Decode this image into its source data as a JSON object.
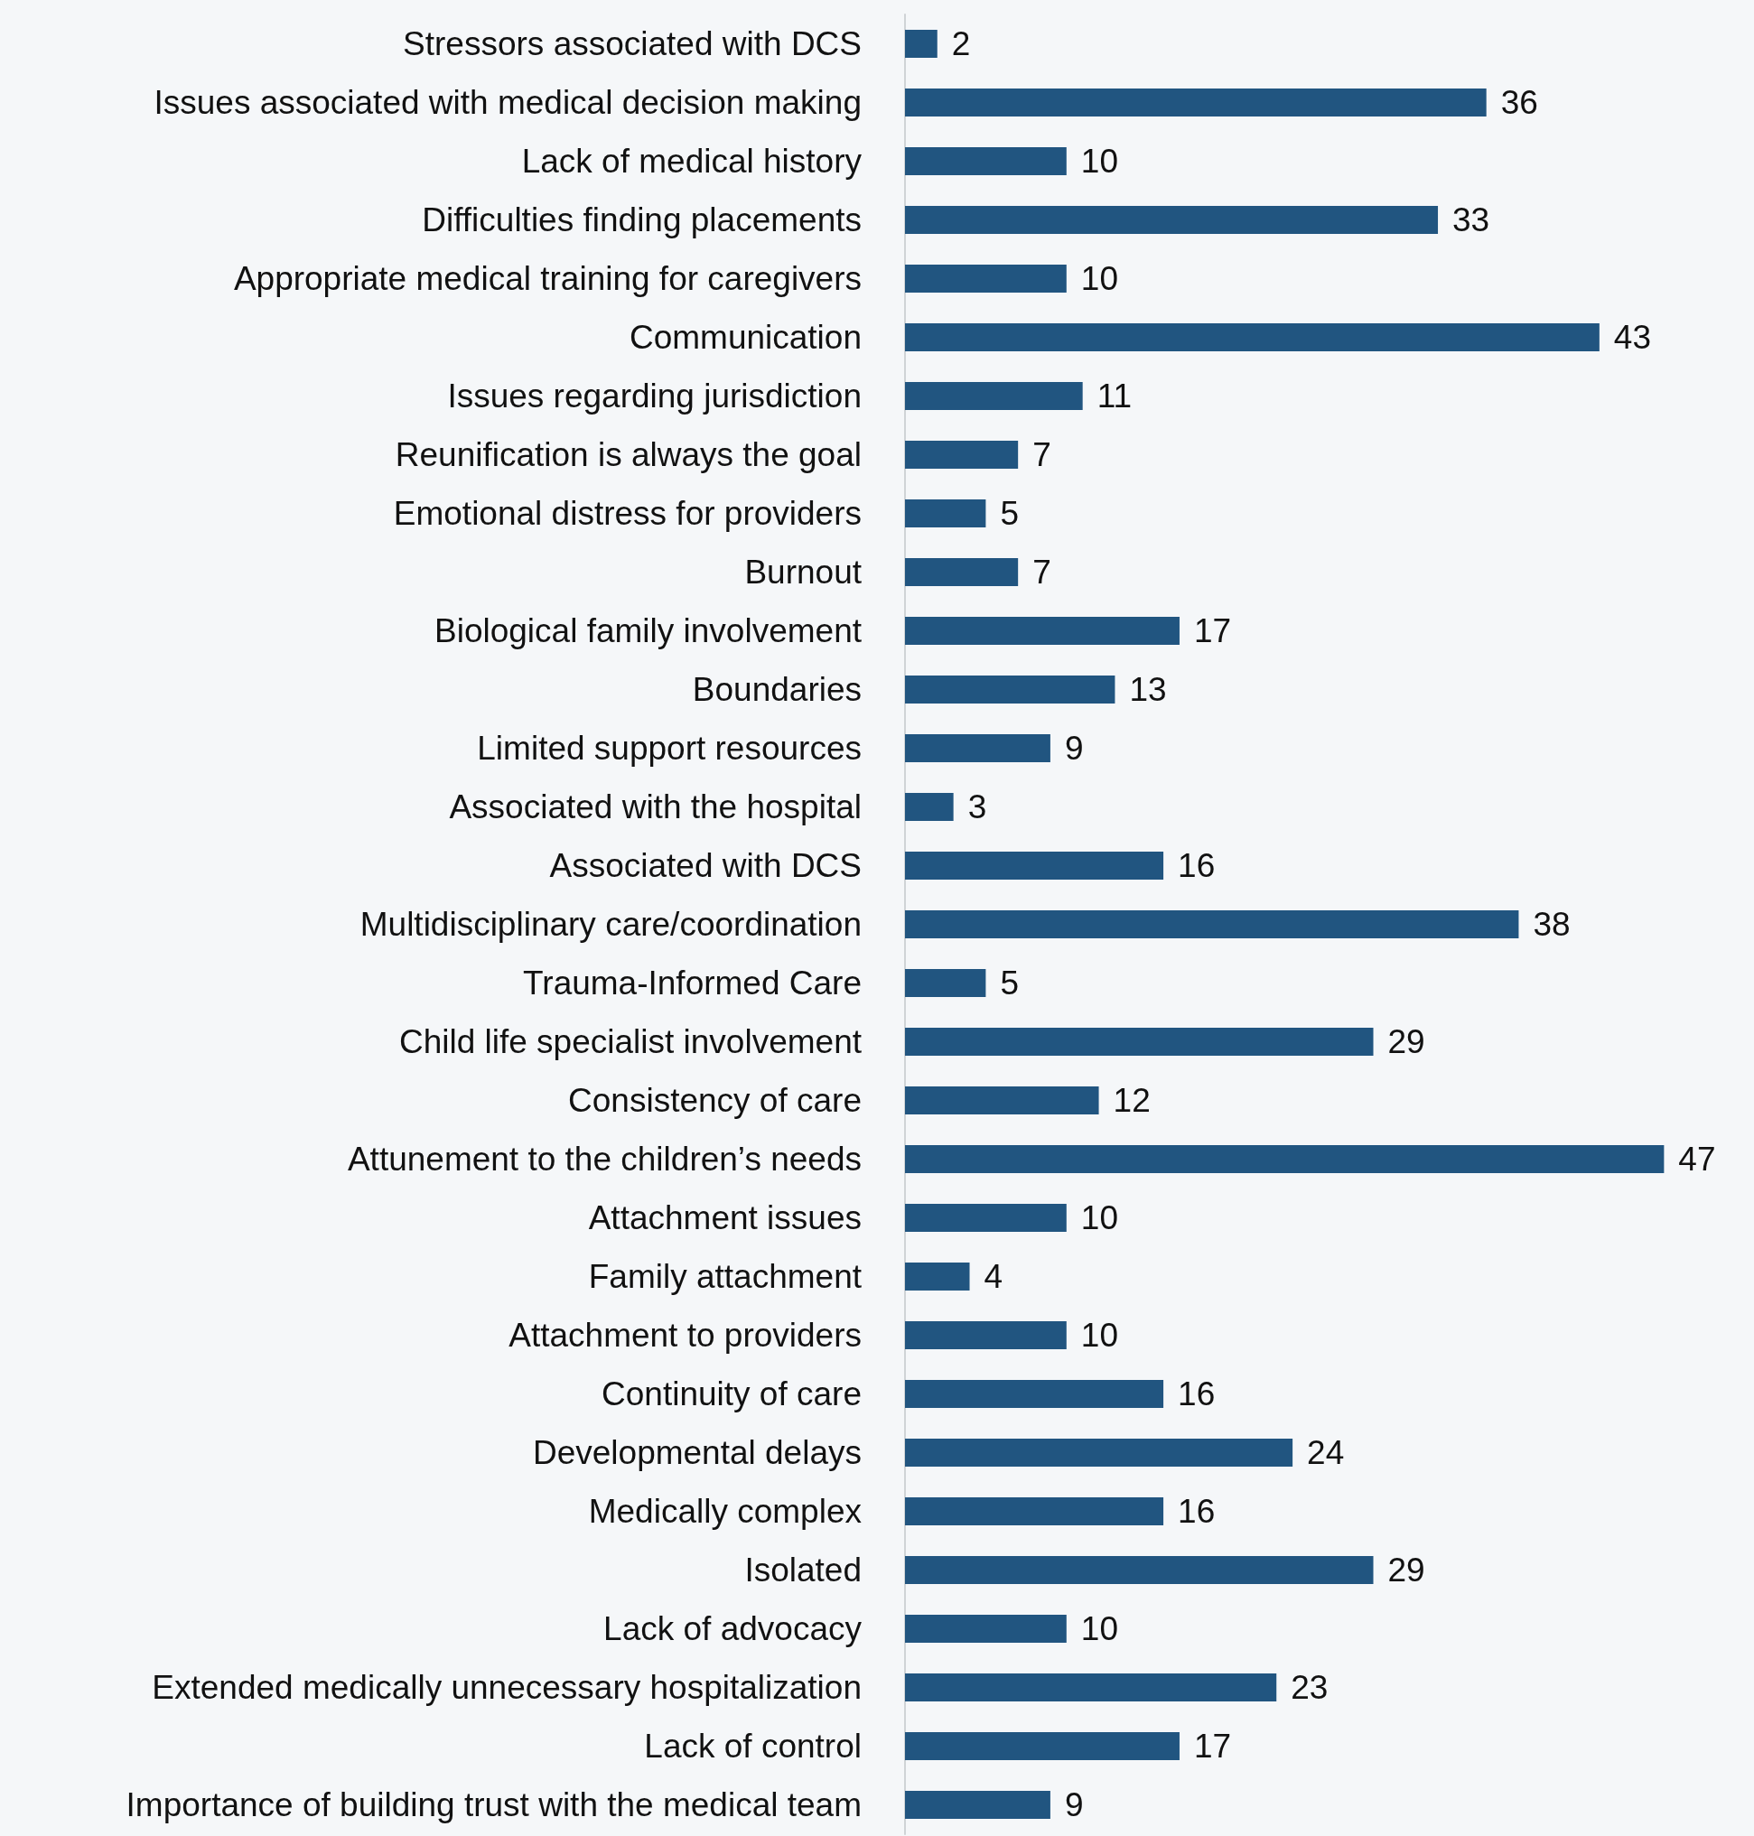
{
  "chart_data": {
    "type": "bar",
    "orientation": "horizontal",
    "data_labels": true,
    "categories": [
      "Stressors associated with DCS",
      "Issues associated with medical decision making",
      "Lack of medical history",
      "Difficulties finding placements",
      "Appropriate medical training for caregivers",
      "Communication",
      "Issues regarding jurisdiction",
      "Reunification is always the goal",
      "Emotional distress for providers",
      "Burnout",
      "Biological family involvement",
      "Boundaries",
      "Limited support resources",
      "Associated with the hospital",
      "Associated with DCS",
      "Multidisciplinary care/coordination",
      "Trauma-Informed Care",
      "Child life specialist involvement",
      "Consistency of care",
      "Attunement to the children’s needs",
      "Attachment issues",
      "Family attachment",
      "Attachment to providers",
      "Continuity of care",
      "Developmental delays",
      "Medically complex",
      "Isolated",
      "Lack of advocacy",
      "Extended medically unnecessary hospitalization",
      "Lack of control",
      "Importance of building trust with the medical team"
    ],
    "values": [
      2,
      36,
      10,
      33,
      10,
      43,
      11,
      7,
      5,
      7,
      17,
      13,
      9,
      3,
      16,
      38,
      5,
      29,
      12,
      47,
      10,
      4,
      10,
      16,
      24,
      16,
      29,
      10,
      23,
      17,
      9
    ],
    "color": "#215580"
  }
}
